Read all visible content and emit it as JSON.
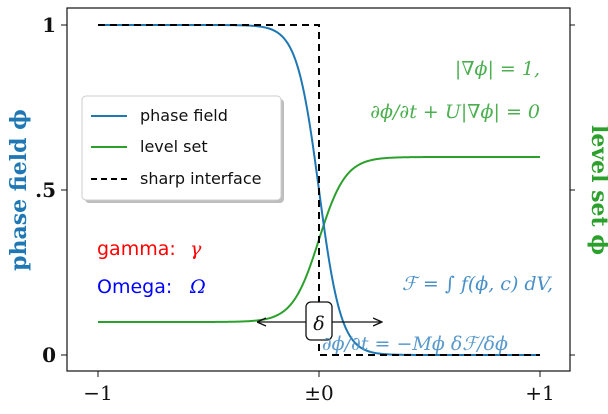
{
  "chart_data": {
    "type": "line",
    "x_ticks": [
      "−1",
      "±0",
      "+1"
    ],
    "y_ticks_left": [
      "1",
      ".5",
      "0"
    ],
    "ylabel_left": "phase field ϕ",
    "ylabel_right": "level set ϕ",
    "xlim": [
      -1,
      1
    ],
    "ylim": [
      0,
      1
    ],
    "grid": false,
    "legend_position": "upper-left",
    "series": [
      {
        "name": "phase field",
        "color": "#1f77b4",
        "style": "solid",
        "shape": "tanh-decreasing",
        "x_center": 0.0,
        "width": 0.1
      },
      {
        "name": "level set",
        "color": "#2ca02c",
        "style": "solid",
        "shape": "tanh-increasing",
        "low": 0.1,
        "high": 0.6,
        "x_center": 0.0,
        "width": 0.12
      },
      {
        "name": "sharp interface",
        "color": "#000000",
        "style": "dashed",
        "shape": "step-down",
        "x_center": 0.0
      }
    ],
    "annotations": {
      "eq1": "|∇ϕ| = 1,",
      "eq2": "∂ϕ/∂t + U|∇ϕ| = 0",
      "gamma_label": "gamma:",
      "gamma_symbol": "γ",
      "omega_label": "Omega:",
      "omega_symbol": "Ω",
      "free_energy": "ℱ = ∫ f(ϕ, c) dV,",
      "cahn_hilliard": "∂ϕ/∂t = −Mϕ δℱ/δϕ",
      "delta": "δ"
    }
  },
  "colors": {
    "phase": "#1f77b4",
    "level": "#2ca02c",
    "sharp": "#000000",
    "gamma": "#ff0000",
    "omega": "#0000ff"
  }
}
